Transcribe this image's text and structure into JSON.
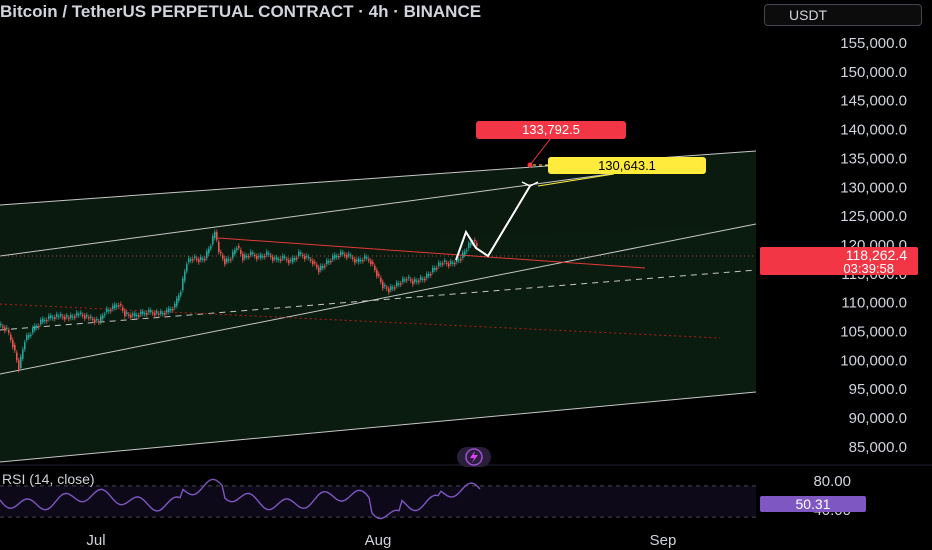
{
  "header": {
    "title": "Bitcoin / TetherUS PERPETUAL CONTRACT · 4h · BINANCE",
    "currency": "USDT"
  },
  "price_axis": {
    "ticks": [
      "155,000.0",
      "150,000.0",
      "145,000.0",
      "140,000.0",
      "135,000.0",
      "130,000.0",
      "125,000.0",
      "120,000.0",
      "115,000.0",
      "110,000.0",
      "105,000.0",
      "100,000.0",
      "95,000.0",
      "90,000.0",
      "85,000.0"
    ],
    "current_price": "118,262.4",
    "countdown": "03:39:58"
  },
  "callouts": {
    "target_high": "133,792.5",
    "target_mid": "130,643.1"
  },
  "time_axis": {
    "labels": [
      "Jul",
      "Aug",
      "Sep"
    ]
  },
  "rsi": {
    "label": "RSI (14, close)",
    "value": "50.31",
    "ticks": [
      "80.00",
      "40.00"
    ]
  },
  "colors": {
    "bg": "#000000",
    "up": "#26a69a",
    "down": "#ef5350",
    "rsi": "#7e57c2",
    "yellow": "#ffeb3b",
    "red_tag": "#f23645",
    "channel": "#c7c7c7"
  },
  "icons": {
    "bolt": "lightning-icon"
  }
}
